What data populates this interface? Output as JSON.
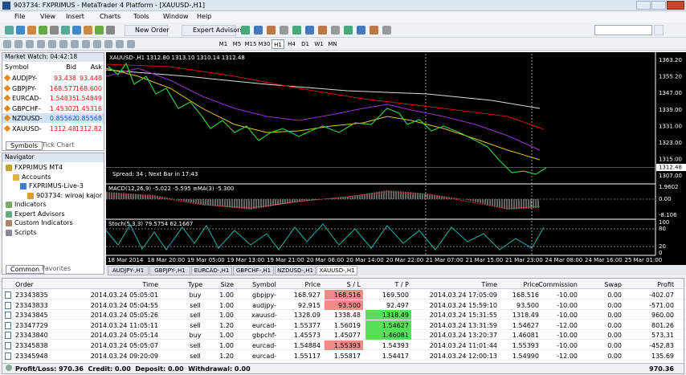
{
  "window": {
    "title": "903734: FXPRIMUS - MetaTrader 4 Platform - [XAUUSD-,H1]"
  },
  "menu": [
    "File",
    "View",
    "Insert",
    "Charts",
    "Tools",
    "Window",
    "Help"
  ],
  "toolbar": {
    "new_order": "New Order",
    "expert_advisors": "Expert Advisors",
    "timeframes": [
      "M1",
      "M5",
      "M15",
      "M30",
      "H1",
      "H4",
      "D1",
      "W1",
      "MN"
    ],
    "active_timeframe": "H1"
  },
  "market_watch": {
    "title": "Market Watch: 04:42:18",
    "columns": [
      "Symbol",
      "Bid",
      "Ask"
    ],
    "rows": [
      [
        "AUDJPY-",
        "93.438",
        "93.448"
      ],
      [
        "GBPJPY-",
        "168.577",
        "168.600"
      ],
      [
        "EURCAD-",
        "1.54835",
        "1.54849"
      ],
      [
        "GBPCHF-",
        "1.45302",
        "1.45316"
      ],
      [
        "NZDUSD-",
        "0.85562",
        "0.85568"
      ],
      [
        "XAUUSD-",
        "1312.48",
        "1312.82"
      ]
    ],
    "selected": "NZDUSD-",
    "tabs": [
      "Symbols",
      "Tick Chart"
    ]
  },
  "navigator": {
    "title": "Navigator",
    "items": [
      "FXPRIMUS MT4",
      "Accounts",
      "FXPRIMUS-Live-3",
      "903734: wiroaj kajor",
      "Indicators",
      "Expert Advisors",
      "Custom Indicators",
      "Scripts"
    ],
    "tabs": [
      "Common",
      "Favorites"
    ]
  },
  "chart": {
    "header": "XAUUSD-,H1  1312.80 1313.10 1310.14 1312.48",
    "price_labels": [
      "1363.20",
      "1355.20",
      "1347.00",
      "1339.00",
      "1331.00",
      "1323.00",
      "1315.00",
      "1307.00"
    ],
    "current_price": "1312.48",
    "spread": "Spread: 34 ; Next Bar in 17:43",
    "macd": {
      "label": "MACD(12,26,9) -5.022 -5.595 ≡MA(3) -5.300",
      "scale": [
        "1.9602",
        "0.00",
        "-8.106"
      ]
    },
    "stoch": {
      "label": "Stoch(5,3,3) 79.5754 62.1667",
      "scale": [
        "100",
        "80",
        "20",
        "0"
      ]
    },
    "time_labels": [
      "18 Mar 2014",
      "18 Mar 20:00",
      "19 Mar 05:00",
      "19 Mar 13:00",
      "19 Mar 21:00",
      "20 Mar 06:00",
      "20 Mar 14:00",
      "20 Mar 22:00",
      "21 Mar 07:00",
      "21 Mar 15:00",
      "21 Mar 23:00",
      "24 Mar 08:00",
      "24 Mar 16:00",
      "25 Mar 01:00"
    ]
  },
  "chart_tabs": [
    "AUDJPY-,H1",
    "GBPJPY-,H1",
    "EURCAD-,H1",
    "GBPCHF-,H1",
    "NZDUSD-,H1",
    "XAUUSD-,H1"
  ],
  "active_tab": "XAUUSD-,H1",
  "orders": {
    "columns": [
      "Order",
      "Time",
      "Type",
      "Size",
      "Symbol",
      "Price",
      "S / L",
      "T / P",
      "Time",
      "Price",
      "Commission",
      "Swap",
      "Profit"
    ],
    "rows": [
      [
        "23343835",
        "2014.03.24 05:05:01",
        "buy",
        "1.00",
        "gbpjpy-",
        "168.927",
        "168.516",
        "169.500",
        "2014.03.24 17:05:09",
        "168.516",
        "-10.00",
        "0.00",
        "-402.07"
      ],
      [
        "23343833",
        "2014.03.24 05:04:55",
        "sell",
        "1.00",
        "audjpy-",
        "92.915",
        "93.500",
        "92.497",
        "2014.03.24 15:59:10",
        "93.500",
        "-10.00",
        "0.00",
        "-571.00"
      ],
      [
        "23343845",
        "2014.03.24 05:05:26",
        "sell",
        "1.00",
        "xauusd-",
        "1328.09",
        "1338.48",
        "1318.49",
        "2014.03.24 15:31:55",
        "1318.49",
        "-10.00",
        "0.00",
        "960.00"
      ],
      [
        "23347729",
        "2014.03.24 11:05:11",
        "sell",
        "1.20",
        "eurcad-",
        "1.55377",
        "1.56019",
        "1.54627",
        "2014.03.24 13:31:59",
        "1.54627",
        "-12.00",
        "0.00",
        "801.26"
      ],
      [
        "23343840",
        "2014.03.24 05:05:14",
        "buy",
        "1.00",
        "gbpchf-",
        "1.45573",
        "1.45077",
        "1.46081",
        "2014.03.24 13:20:37",
        "1.46081",
        "-10.00",
        "0.00",
        "573.31"
      ],
      [
        "23345838",
        "2014.03.24 05:05:07",
        "sell",
        "1.00",
        "eurcad-",
        "1.54884",
        "1.55393",
        "1.54393",
        "2014.03.24 11:01:44",
        "1.55393",
        "-10.00",
        "0.00",
        "-452.83"
      ],
      [
        "23345948",
        "2014.03.24 09:20:09",
        "sell",
        "1.20",
        "eurcad-",
        "1.55117",
        "1.55817",
        "1.54417",
        "2014.03.24 12:00:13",
        "1.54990",
        "-12.00",
        "0.00",
        "135.69"
      ]
    ],
    "footer": {
      "summary": "Profit/Loss: 970.36  Credit: 0.00  Deposit: 0.00  Withdrawal: 0.00",
      "total": "970.36"
    }
  }
}
